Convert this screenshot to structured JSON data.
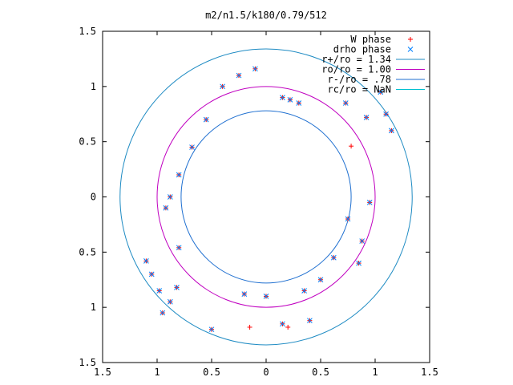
{
  "chart_data": {
    "type": "scatter",
    "title": "m2/n1.5/k180/0.79/512",
    "xlabel": "",
    "ylabel": "",
    "xlim": [
      -1.5,
      1.5
    ],
    "ylim": [
      -1.5,
      1.5
    ],
    "x_ticks": [
      -1.5,
      -1,
      -0.5,
      0,
      0.5,
      1,
      1.5
    ],
    "x_tick_labels": [
      "1.5",
      "1",
      "0.5",
      "0",
      "0.5",
      "1",
      "1.5"
    ],
    "y_ticks": [
      1.5,
      1,
      0.5,
      0,
      -0.5,
      -1,
      -1.5
    ],
    "y_tick_labels": [
      "1.5",
      "1",
      "0.5",
      "0",
      "0.5",
      "1",
      "1.5"
    ],
    "grid": false,
    "legend_position": "top-right",
    "series": [
      {
        "name": "W phase",
        "kind": "points",
        "marker": "+",
        "color": "#ff0000",
        "points": [
          [
            0.15,
            0.9
          ],
          [
            0.22,
            0.88
          ],
          [
            0.3,
            0.85
          ],
          [
            -0.1,
            1.16
          ],
          [
            -0.25,
            1.1
          ],
          [
            -0.4,
            1.0
          ],
          [
            -0.55,
            0.7
          ],
          [
            -0.68,
            0.45
          ],
          [
            -0.8,
            0.2
          ],
          [
            -0.88,
            0.0
          ],
          [
            -0.92,
            -0.1
          ],
          [
            0.78,
            0.46
          ],
          [
            0.73,
            0.85
          ],
          [
            0.92,
            0.72
          ],
          [
            0.75,
            -0.2
          ],
          [
            0.62,
            -0.55
          ],
          [
            0.5,
            -0.75
          ],
          [
            0.35,
            -0.85
          ],
          [
            0.0,
            -0.9
          ],
          [
            -0.2,
            -0.88
          ],
          [
            -0.82,
            -0.82
          ],
          [
            -0.88,
            -0.95
          ],
          [
            -0.95,
            -1.05
          ],
          [
            -0.5,
            -1.2
          ],
          [
            0.15,
            -1.15
          ],
          [
            0.4,
            -1.12
          ],
          [
            -0.15,
            -1.18
          ],
          [
            0.2,
            -1.18
          ],
          [
            -0.8,
            -0.46
          ],
          [
            -1.1,
            -0.58
          ],
          [
            -1.05,
            -0.7
          ],
          [
            -0.98,
            -0.85
          ],
          [
            1.05,
            0.95
          ],
          [
            1.1,
            0.75
          ],
          [
            1.15,
            0.6
          ],
          [
            0.95,
            -0.05
          ],
          [
            0.88,
            -0.4
          ],
          [
            0.85,
            -0.6
          ]
        ]
      },
      {
        "name": "drho phase",
        "kind": "points",
        "marker": "x",
        "color": "#0080ff",
        "points": [
          [
            0.15,
            0.9
          ],
          [
            0.22,
            0.88
          ],
          [
            0.3,
            0.85
          ],
          [
            -0.1,
            1.16
          ],
          [
            -0.25,
            1.1
          ],
          [
            -0.4,
            1.0
          ],
          [
            -0.55,
            0.7
          ],
          [
            -0.68,
            0.45
          ],
          [
            -0.8,
            0.2
          ],
          [
            -0.88,
            0.0
          ],
          [
            -0.92,
            -0.1
          ],
          [
            0.73,
            0.85
          ],
          [
            0.92,
            0.72
          ],
          [
            0.75,
            -0.2
          ],
          [
            0.62,
            -0.55
          ],
          [
            0.5,
            -0.75
          ],
          [
            0.35,
            -0.85
          ],
          [
            0.0,
            -0.9
          ],
          [
            -0.2,
            -0.88
          ],
          [
            -0.82,
            -0.82
          ],
          [
            -0.88,
            -0.95
          ],
          [
            -0.95,
            -1.05
          ],
          [
            -0.5,
            -1.2
          ],
          [
            0.15,
            -1.15
          ],
          [
            0.4,
            -1.12
          ],
          [
            -0.8,
            -0.46
          ],
          [
            -1.1,
            -0.58
          ],
          [
            -1.05,
            -0.7
          ],
          [
            -0.98,
            -0.85
          ],
          [
            1.05,
            0.95
          ],
          [
            1.1,
            0.75
          ],
          [
            1.15,
            0.6
          ],
          [
            0.95,
            -0.05
          ],
          [
            0.88,
            -0.4
          ],
          [
            0.85,
            -0.6
          ]
        ]
      },
      {
        "name": "r+/ro = 1.34",
        "kind": "circle",
        "radius": 1.34,
        "color": "#1e8bc3"
      },
      {
        "name": "ro/ro = 1.00",
        "kind": "circle",
        "radius": 1.0,
        "color": "#c000c0"
      },
      {
        "name": "r-/ro = .78",
        "kind": "circle",
        "radius": 0.78,
        "color": "#1e6fd0"
      },
      {
        "name": "rc/ro = NaN",
        "kind": "circle",
        "radius": null,
        "color": "#00c0d0"
      }
    ]
  }
}
